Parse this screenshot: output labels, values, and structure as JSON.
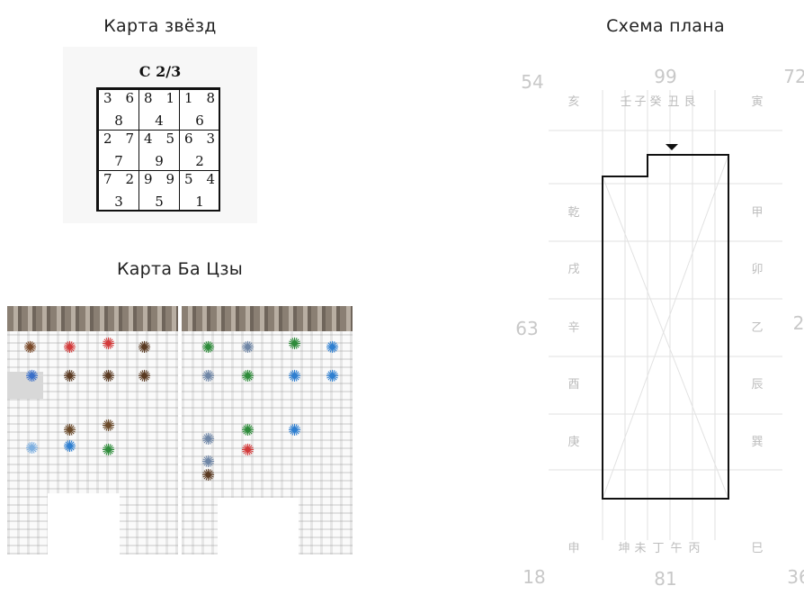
{
  "star_map": {
    "title": "Карта звёзд",
    "header": "C 2/3",
    "cells": [
      {
        "tl": "3",
        "tr": "6",
        "bc": "8"
      },
      {
        "tl": "8",
        "tr": "1",
        "bc": "4"
      },
      {
        "tl": "1",
        "tr": "8",
        "bc": "6"
      },
      {
        "tl": "2",
        "tr": "7",
        "bc": "7"
      },
      {
        "tl": "4",
        "tr": "5",
        "bc": "9"
      },
      {
        "tl": "6",
        "tr": "3",
        "bc": "2"
      },
      {
        "tl": "7",
        "tr": "2",
        "bc": "3"
      },
      {
        "tl": "9",
        "tr": "9",
        "bc": "5"
      },
      {
        "tl": "5",
        "tr": "4",
        "bc": "1"
      }
    ]
  },
  "bazi": {
    "title": "Карта Ба Цзы"
  },
  "plan": {
    "title": "Схема плана",
    "degrees": {
      "top_left": "54",
      "top_center": "99",
      "top_right": "72",
      "middle_left": "63",
      "middle_right": "2",
      "bottom_left": "18",
      "bottom_center": "81",
      "bottom_right": "36"
    },
    "mountains_top": [
      "亥",
      "壬",
      "子",
      "癸",
      "丑",
      "艮",
      "寅"
    ],
    "mountains_left": [
      "乾",
      "戌",
      "辛",
      "酉",
      "庚"
    ],
    "mountains_right": [
      "甲",
      "卯",
      "乙",
      "辰",
      "巽"
    ],
    "mountains_bottom": [
      "申",
      "坤",
      "未",
      "丁",
      "午",
      "丙",
      "巳"
    ]
  },
  "colors": {
    "grid_line": "#e2e2e2",
    "mountain_text": "#bdbdbd",
    "degree_text": "#c8c8c8",
    "outline": "#111111"
  }
}
